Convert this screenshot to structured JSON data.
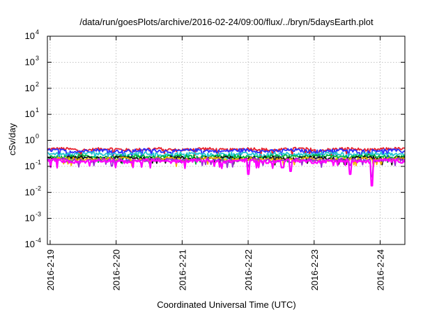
{
  "chart_data": {
    "type": "line",
    "title": "/data/run/goesPlots/archive/2016-02-24/09:00/flux/../bryn/5daysEarth.plot",
    "xlabel": "Coordinated Universal Time (UTC)",
    "ylabel": "cSv/day",
    "y_scale": "log",
    "ylim": [
      0.0001,
      10000
    ],
    "y_ticks": [
      {
        "base": "10",
        "exp": "-4",
        "value": 0.0001
      },
      {
        "base": "10",
        "exp": "-3",
        "value": 0.001
      },
      {
        "base": "10",
        "exp": "-2",
        "value": 0.01
      },
      {
        "base": "10",
        "exp": "-1",
        "value": 0.1
      },
      {
        "base": "10",
        "exp": "0",
        "value": 1
      },
      {
        "base": "10",
        "exp": "1",
        "value": 10
      },
      {
        "base": "10",
        "exp": "2",
        "value": 100
      },
      {
        "base": "10",
        "exp": "3",
        "value": 1000
      },
      {
        "base": "10",
        "exp": "4",
        "value": 10000
      }
    ],
    "xlim": [
      "2016-02-18 23:00",
      "2016-02-24 09:00"
    ],
    "x_ticks": [
      "2016-2-19",
      "2016-2-20",
      "2016-2-21",
      "2016-2-22",
      "2016-2-23",
      "2016-2-24"
    ],
    "grid": true,
    "legend": "none",
    "series_style": [
      {
        "color": "#e8202a",
        "base": 0.45
      },
      {
        "color": "#2b2bff",
        "base": 0.4
      },
      {
        "color": "#23c4d4",
        "base": 0.3
      },
      {
        "color": "#00b43a",
        "base": 0.24
      },
      {
        "color": "#111111",
        "base": 0.21
      },
      {
        "color": "#f0b400",
        "base": 0.19
      },
      {
        "color": "#9a2fd0",
        "base": 0.175
      },
      {
        "color": "#ff00ff",
        "base": 0.16
      }
    ],
    "dips": [
      {
        "x": "2016-02-22 00:00",
        "min": 0.05
      },
      {
        "x": "2016-02-22 12:30",
        "min": 0.09
      },
      {
        "x": "2016-02-22 15:30",
        "min": 0.065
      },
      {
        "x": "2016-02-23 13:00",
        "min": 0.05
      },
      {
        "x": "2016-02-23 21:00",
        "min": 0.018
      }
    ]
  }
}
